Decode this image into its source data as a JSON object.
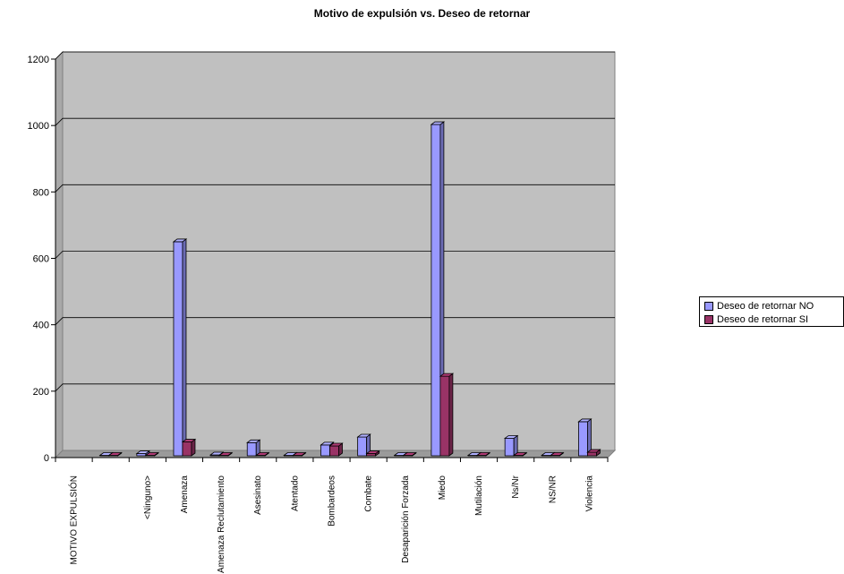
{
  "chart_data": {
    "type": "bar",
    "title": "Motivo de expulsión vs. Deseo de retornar",
    "xlabel": "",
    "ylabel": "",
    "categories": [
      "MOTIVO EXPULSIÓN",
      "",
      "<Ninguno>",
      "Amenaza",
      "Amenaza Reclutamiento",
      "Asesinato",
      "Atentado",
      "Bombardeos",
      "Combate",
      "Desaparición Forzada",
      "Miedo",
      "Mutilación",
      "Ns/Nr",
      "NS/NR",
      "Violencia"
    ],
    "series": [
      {
        "name": "Deseo de retornar NO",
        "color": "#9999ff",
        "values": [
          0,
          2,
          12,
          650,
          8,
          45,
          2,
          38,
          62,
          2,
          1003,
          5,
          58,
          4,
          108
        ]
      },
      {
        "name": "Deseo de retornar SI",
        "color": "#993366",
        "values": [
          0,
          1,
          2,
          47,
          2,
          5,
          1,
          35,
          12,
          1,
          245,
          2,
          3,
          1,
          16
        ]
      }
    ],
    "ylim": [
      0,
      1200
    ],
    "yticks": [
      0,
      200,
      400,
      600,
      800,
      1000,
      1200
    ],
    "grid": true,
    "legend": "right",
    "plot_background": "#c0c0c0",
    "three_d": true
  }
}
